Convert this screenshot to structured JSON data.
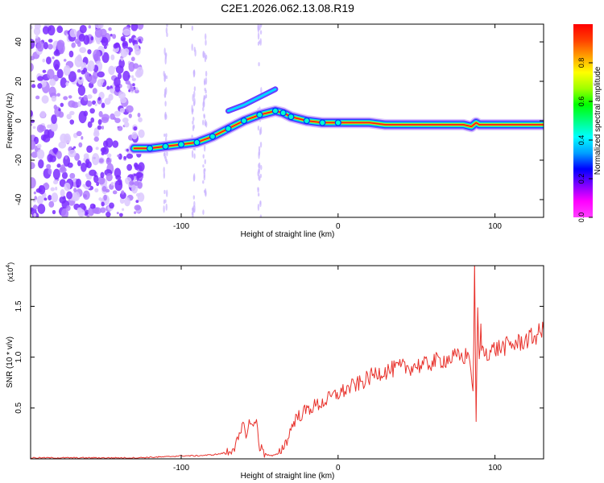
{
  "title": "C2E1.2026.062.13.08.R19",
  "colors": {
    "trace": "#e8312b",
    "axis": "#000000",
    "colorbar": [
      "#ff40ff",
      "#ff00ff",
      "#8000ff",
      "#0000ff",
      "#00a0ff",
      "#00ffff",
      "#00ff80",
      "#00ff00",
      "#a0ff00",
      "#ffff00",
      "#ffa000",
      "#ff4000",
      "#ff0000"
    ]
  },
  "chart_data": [
    {
      "type": "heatmap",
      "name": "spectrogram",
      "xlabel": "Height of straight line (km)",
      "ylabel": "Frequency (Hz)",
      "xlim": [
        -196,
        131
      ],
      "ylim": [
        -49,
        49
      ],
      "xticks": [
        -100,
        0,
        100
      ],
      "yticks": [
        -40,
        -20,
        0,
        20,
        40
      ],
      "colorbar": {
        "label": "Normalized spectral amplitude",
        "range": [
          0,
          1
        ],
        "ticks": [
          0.0,
          0.2,
          0.4,
          0.6,
          0.8
        ]
      },
      "ridge": {
        "x": [
          -130,
          -120,
          -110,
          -100,
          -90,
          -80,
          -70,
          -60,
          -50,
          -40,
          -35,
          -30,
          -20,
          -10,
          0,
          10,
          20,
          30,
          50,
          80,
          85,
          88,
          90,
          100,
          110,
          120,
          131
        ],
        "y": [
          -14,
          -14,
          -13,
          -12,
          -11,
          -8,
          -4,
          0,
          3,
          5,
          4,
          2,
          0,
          -1,
          -1,
          -1,
          -1,
          -2,
          -2,
          -2,
          -3,
          -1,
          -2,
          -2,
          -2,
          -2,
          -2
        ]
      },
      "noise_region": [
        -196,
        -125
      ]
    },
    {
      "type": "line",
      "name": "snr",
      "xlabel": "Height of straight line (km)",
      "ylabel": "SNR (10 * v/v)",
      "ylabel_multiplier": "(x10^4)",
      "multiplier_base": "(x10",
      "multiplier_exp": "4",
      "multiplier_close": ")",
      "xlim": [
        -196,
        131
      ],
      "ylim": [
        0,
        1.9
      ],
      "xticks": [
        -100,
        0,
        100
      ],
      "yticks": [
        0.5,
        1.0,
        1.5
      ],
      "ytick_labels": [
        "0.5",
        "1.0",
        "1.5"
      ],
      "series": [
        {
          "name": "SNR",
          "x": [
            -196,
            -160,
            -130,
            -110,
            -100,
            -90,
            -80,
            -75,
            -70,
            -66,
            -63,
            -60,
            -58,
            -56,
            -54,
            -52,
            -50,
            -47,
            -45,
            -42,
            -40,
            -38,
            -35,
            -32,
            -30,
            -27,
            -25,
            -20,
            -15,
            -10,
            -5,
            0,
            5,
            10,
            15,
            20,
            25,
            30,
            35,
            40,
            45,
            50,
            55,
            60,
            65,
            70,
            75,
            80,
            84,
            86,
            87,
            88,
            89,
            90,
            91,
            92,
            95,
            100,
            105,
            110,
            115,
            120,
            125,
            131
          ],
          "y": [
            0.01,
            0.01,
            0.01,
            0.02,
            0.03,
            0.03,
            0.04,
            0.05,
            0.07,
            0.12,
            0.2,
            0.35,
            0.22,
            0.4,
            0.3,
            0.38,
            0.12,
            0.06,
            0.04,
            0.03,
            0.04,
            0.05,
            0.12,
            0.2,
            0.3,
            0.4,
            0.42,
            0.48,
            0.52,
            0.55,
            0.6,
            0.64,
            0.68,
            0.72,
            0.75,
            0.8,
            0.85,
            0.86,
            0.88,
            0.9,
            0.9,
            0.92,
            0.92,
            0.95,
            0.97,
            0.98,
            1.0,
            1.0,
            1.03,
            0.6,
            1.85,
            0.4,
            1.4,
            0.95,
            1.25,
            1.05,
            1.05,
            1.08,
            1.1,
            1.12,
            1.14,
            1.17,
            1.2,
            1.27
          ]
        }
      ]
    }
  ]
}
